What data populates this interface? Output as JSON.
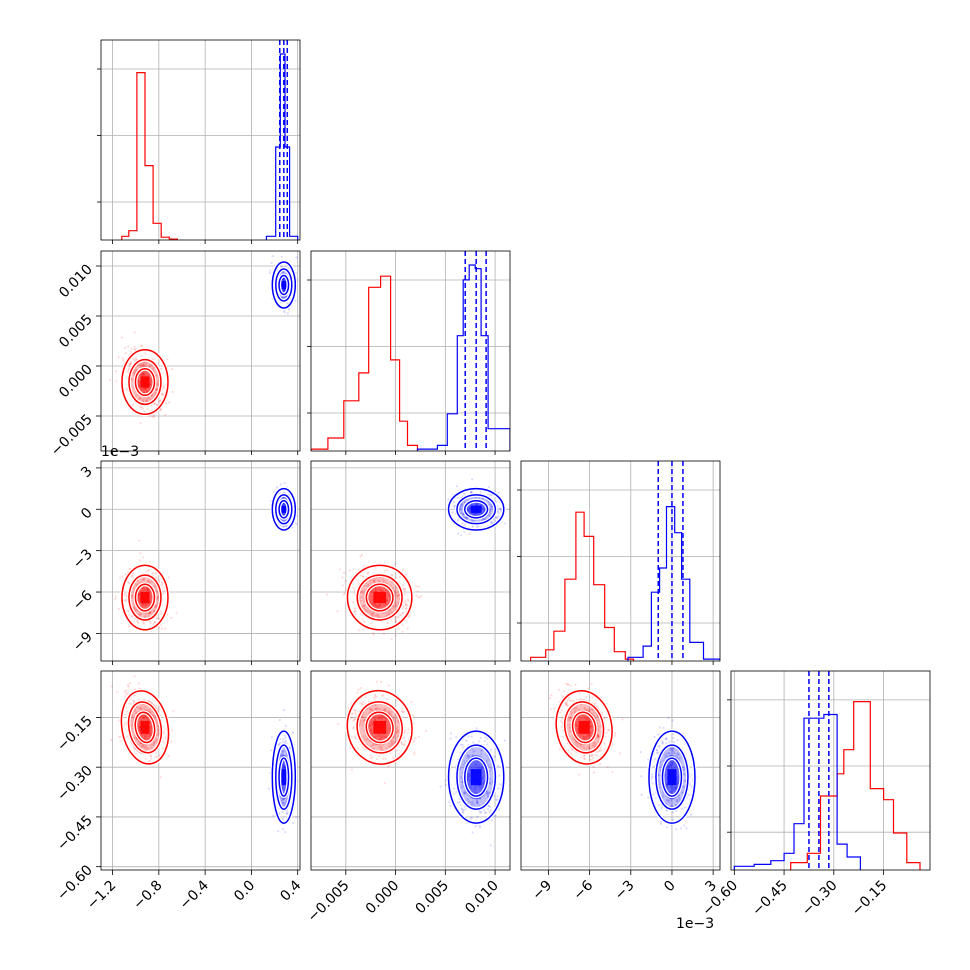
{
  "chart_data": {
    "type": "scatter",
    "title": "",
    "colors": {
      "series_a": "#ff0000",
      "series_b": "#0000ff"
    },
    "grid": true,
    "series": [
      {
        "color": "#ff0000",
        "x": -0.92,
        "y": -0.0016,
        "z": -0.0064,
        "w": -0.18
      },
      {
        "color": "#0000ff",
        "x": 0.28,
        "y": 0.0081,
        "z": 0.0,
        "w": -0.33
      }
    ],
    "axes": [
      {
        "range": [
          -1.3,
          0.42
        ],
        "ticks": [
          -1.2,
          -0.8,
          -0.4,
          0.0,
          0.4
        ],
        "tick_labels": [
          "−1.2",
          "−0.8",
          "−0.4",
          "0.0",
          "0.4"
        ],
        "offset": ""
      },
      {
        "range": [
          -0.0085,
          0.0115
        ],
        "ticks": [
          -0.005,
          0.0,
          0.005,
          0.01
        ],
        "tick_labels": [
          "−0.005",
          "0.000",
          "0.005",
          "0.010"
        ],
        "offset": ""
      },
      {
        "range": [
          -0.011,
          0.0035
        ],
        "ticks": [
          -0.009,
          -0.006,
          -0.003,
          0.0,
          0.003
        ],
        "tick_labels_x": [
          "−9",
          "−6",
          "−3",
          "0",
          "3"
        ],
        "tick_labels_y": [
          "−9",
          "−6",
          "−3",
          "0",
          "3"
        ],
        "offset": "1e−3"
      },
      {
        "range": [
          -0.61,
          -0.01
        ],
        "ticks": [
          -0.6,
          -0.45,
          -0.3,
          -0.15
        ],
        "tick_labels": [
          "−0.60",
          "−0.45",
          "−0.30",
          "−0.15"
        ],
        "offset": ""
      }
    ],
    "histograms": [
      {
        "red": [
          0.02,
          0.05,
          0.9,
          0.4,
          0.09,
          0.015,
          0.005
        ],
        "red_edges": [
          -1.12,
          -1.06,
          -0.99,
          -0.92,
          -0.85,
          -0.78,
          -0.71,
          -0.64
        ],
        "blue": [
          0.02,
          0.5,
          1.0,
          0.5,
          0.02
        ],
        "blue_edges": [
          0.13,
          0.21,
          0.25,
          0.29,
          0.33,
          0.4
        ],
        "quantiles_blue": [
          0.245,
          0.28,
          0.31
        ]
      },
      {
        "red": [
          0.01,
          0.07,
          0.27,
          0.42,
          0.88,
          0.94,
          0.49,
          0.16,
          0.03
        ],
        "red_edges": [
          -0.0085,
          -0.0068,
          -0.0052,
          -0.0037,
          -0.0027,
          -0.0015,
          -0.0005,
          0.0004,
          0.0012,
          0.0022
        ],
        "blue": [
          0.01,
          0.03,
          0.2,
          0.62,
          0.92,
          1.0,
          0.98,
          0.62,
          0.12
        ],
        "blue_edges": [
          0.0022,
          0.0042,
          0.0052,
          0.0062,
          0.0068,
          0.0074,
          0.008,
          0.0086,
          0.0093,
          0.0115
        ],
        "quantiles_blue": [
          0.007,
          0.0081,
          0.0091
        ]
      },
      {
        "red": [
          0.02,
          0.06,
          0.16,
          0.44,
          0.8,
          0.67,
          0.41,
          0.18,
          0.05,
          0.01
        ],
        "red_edges": [
          -0.0103,
          -0.0092,
          -0.0086,
          -0.0078,
          -0.007,
          -0.0064,
          -0.0057,
          -0.0049,
          -0.0042,
          -0.0034,
          -0.0028
        ],
        "blue": [
          0.02,
          0.08,
          0.37,
          0.5,
          0.83,
          0.69,
          0.44,
          0.1,
          0.01
        ],
        "blue_edges": [
          -0.0032,
          -0.0021,
          -0.0015,
          -0.0009,
          -0.0004,
          0.0002,
          0.0007,
          0.0013,
          0.0023,
          0.0035
        ],
        "quantiles_blue": [
          -0.001,
          0.0,
          0.0008
        ]
      },
      {
        "red": [
          0.04,
          0.09,
          0.4,
          0.52,
          0.65,
          0.91,
          0.44,
          0.38,
          0.2,
          0.04
        ],
        "red_edges": [
          -0.43,
          -0.38,
          -0.34,
          -0.29,
          -0.27,
          -0.24,
          -0.19,
          -0.15,
          -0.12,
          -0.08,
          -0.04
        ],
        "blue": [
          0.02,
          0.03,
          0.05,
          0.09,
          0.25,
          0.82,
          0.84,
          0.14,
          0.07
        ],
        "blue_edges": [
          -0.6,
          -0.54,
          -0.49,
          -0.45,
          -0.42,
          -0.39,
          -0.33,
          -0.29,
          -0.26,
          -0.22
        ],
        "quantiles_blue": [
          -0.375,
          -0.345,
          -0.315
        ]
      }
    ]
  }
}
